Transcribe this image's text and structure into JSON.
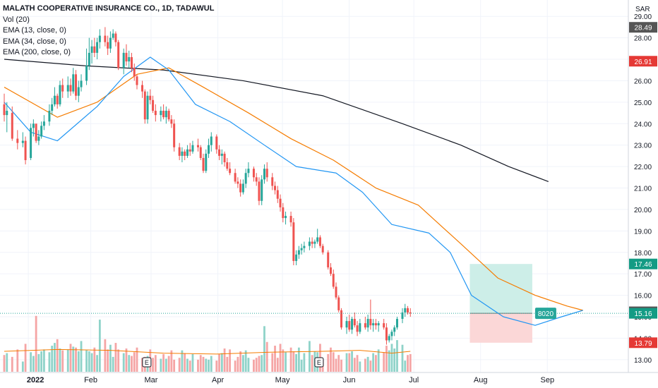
{
  "legend": {
    "symbol": "MALATH COOPERATIVE INSURANCE CO., 1D, TADAWUL",
    "items": [
      "Vol (20)",
      "EMA (13, close, 0)",
      "EMA (34, close, 0)",
      "EMA (200, close, 0)"
    ]
  },
  "chart_data": {
    "type": "candlestick",
    "currency_label": "SAR",
    "ylim": [
      12.6,
      29.5
    ],
    "y_ticks": [
      "13.00",
      "14.00",
      "15.00",
      "16.00",
      "17.00",
      "18.00",
      "19.00",
      "20.00",
      "21.00",
      "22.00",
      "23.00",
      "24.00",
      "25.00",
      "26.00",
      "27.00",
      "28.00",
      "29.00"
    ],
    "x_ticks": [
      "2022",
      "Feb",
      "Mar",
      "Apr",
      "May",
      "Jun",
      "Jul",
      "Aug",
      "Sep"
    ],
    "date_range": [
      "2022-01-01",
      "2022-09-15"
    ],
    "price_labels": [
      {
        "label": "28.49",
        "value": 28.49,
        "color": "#555555"
      },
      {
        "label": "26.91",
        "value": 26.91,
        "color": "#e53935"
      },
      {
        "label": "17.46",
        "value": 17.46,
        "color": "#139b84"
      },
      {
        "label": "15.23",
        "value": 15.23,
        "color": "#555555"
      },
      {
        "label": "15.16",
        "value": 15.16,
        "color": "#139b84"
      },
      {
        "label": "13.79",
        "value": 13.79,
        "color": "#e53935"
      }
    ],
    "position_tool": {
      "entry": 15.16,
      "target": 17.46,
      "stop": 13.79,
      "start_date": "2022-07-27",
      "end_date": "2022-08-25",
      "label": "8020"
    },
    "event_markers": [
      {
        "date": "2022-02-27",
        "label": "E"
      },
      {
        "date": "2022-05-18",
        "label": "E"
      }
    ],
    "last_close": 15.16,
    "colors": {
      "up": "#26a69a",
      "down": "#ef5350",
      "ema13": "#2196f3",
      "ema34": "#f57c00",
      "ema200": "#131722",
      "vol_up": "#8fd3c9",
      "vol_down": "#f5a5a5",
      "vol_ma": "#f57c00",
      "target_zone": "#cdeee8",
      "stop_zone": "#fbd7d7"
    },
    "ema13": [
      [
        0,
        25.0
      ],
      [
        10,
        23.6
      ],
      [
        20,
        23.2
      ],
      [
        35,
        24.8
      ],
      [
        45,
        26.2
      ],
      [
        55,
        27.1
      ],
      [
        62,
        26.5
      ],
      [
        72,
        24.9
      ],
      [
        85,
        24.1
      ],
      [
        98,
        23.0
      ],
      [
        110,
        22.0
      ],
      [
        125,
        21.7
      ],
      [
        135,
        20.8
      ],
      [
        146,
        19.3
      ],
      [
        160,
        18.9
      ],
      [
        168,
        18.0
      ],
      [
        176,
        16.0
      ],
      [
        188,
        15.0
      ],
      [
        200,
        14.6
      ],
      [
        210,
        15.0
      ],
      [
        218,
        15.3
      ]
    ],
    "ema34": [
      [
        0,
        25.7
      ],
      [
        20,
        24.3
      ],
      [
        35,
        25.0
      ],
      [
        50,
        26.3
      ],
      [
        62,
        26.6
      ],
      [
        75,
        25.7
      ],
      [
        92,
        24.5
      ],
      [
        108,
        23.3
      ],
      [
        124,
        22.3
      ],
      [
        140,
        21.0
      ],
      [
        156,
        20.2
      ],
      [
        172,
        18.4
      ],
      [
        186,
        16.8
      ],
      [
        200,
        16.0
      ],
      [
        212,
        15.5
      ],
      [
        218,
        15.3
      ]
    ],
    "ema200": [
      [
        0,
        27.0
      ],
      [
        30,
        26.7
      ],
      [
        60,
        26.5
      ],
      [
        90,
        26.0
      ],
      [
        120,
        25.3
      ],
      [
        150,
        24.0
      ],
      [
        172,
        23.0
      ],
      [
        190,
        22.0
      ],
      [
        205,
        21.3
      ]
    ],
    "candles": [
      [
        0,
        24.9,
        25.4,
        24.1,
        24.4
      ],
      [
        1,
        24.4,
        25.0,
        23.6,
        24.6
      ],
      [
        3,
        24.5,
        24.8,
        23.2,
        23.3
      ],
      [
        5,
        23.3,
        23.7,
        22.8,
        23.1
      ],
      [
        7,
        23.1,
        23.6,
        22.9,
        23.2
      ],
      [
        8,
        23.2,
        23.4,
        22.1,
        22.3
      ],
      [
        10,
        22.4,
        24.0,
        22.3,
        23.8
      ],
      [
        11,
        23.8,
        24.2,
        23.4,
        24.0
      ],
      [
        12,
        24.0,
        24.0,
        23.1,
        23.2
      ],
      [
        13,
        23.2,
        23.7,
        23.0,
        23.4
      ],
      [
        14,
        23.4,
        24.1,
        23.3,
        23.9
      ],
      [
        15,
        23.9,
        24.4,
        23.7,
        24.1
      ],
      [
        17,
        24.1,
        24.9,
        23.9,
        24.6
      ],
      [
        18,
        24.6,
        25.2,
        24.4,
        24.9
      ],
      [
        19,
        24.9,
        25.7,
        24.8,
        25.3
      ],
      [
        20,
        25.3,
        25.4,
        24.7,
        24.9
      ],
      [
        21,
        24.9,
        26.0,
        24.8,
        25.8
      ],
      [
        22,
        25.8,
        26.1,
        25.2,
        25.5
      ],
      [
        24,
        25.5,
        26.2,
        25.2,
        25.8
      ],
      [
        25,
        25.8,
        26.1,
        25.3,
        25.5
      ],
      [
        26,
        25.5,
        26.6,
        25.4,
        26.3
      ],
      [
        27,
        26.3,
        26.5,
        25.1,
        25.3
      ],
      [
        28,
        25.3,
        26.0,
        25.0,
        25.7
      ],
      [
        29,
        25.7,
        26.3,
        25.5,
        26.0
      ],
      [
        31,
        26.0,
        27.5,
        25.8,
        26.7
      ],
      [
        32,
        26.7,
        28.0,
        26.5,
        27.3
      ],
      [
        33,
        27.3,
        27.9,
        26.8,
        27.6
      ],
      [
        34,
        27.6,
        28.0,
        27.1,
        27.3
      ],
      [
        35,
        27.3,
        28.0,
        27.0,
        27.8
      ],
      [
        36,
        27.8,
        28.4,
        27.5,
        28.1
      ],
      [
        38,
        28.1,
        28.5,
        27.6,
        27.8
      ],
      [
        39,
        27.8,
        28.1,
        27.2,
        27.5
      ],
      [
        40,
        27.5,
        28.3,
        27.3,
        28.0
      ],
      [
        41,
        28.0,
        28.4,
        27.9,
        28.2
      ],
      [
        42,
        28.2,
        28.3,
        27.6,
        27.8
      ],
      [
        43,
        27.8,
        27.9,
        26.5,
        26.6
      ],
      [
        45,
        26.6,
        27.5,
        26.3,
        27.3
      ],
      [
        46,
        27.3,
        27.7,
        26.7,
        26.9
      ],
      [
        47,
        26.9,
        27.4,
        26.6,
        27.1
      ],
      [
        48,
        27.1,
        27.3,
        26.4,
        26.6
      ],
      [
        49,
        26.6,
        26.8,
        26.0,
        26.2
      ],
      [
        50,
        26.2,
        26.3,
        25.6,
        25.8
      ],
      [
        52,
        25.8,
        26.0,
        25.2,
        25.5
      ],
      [
        53,
        25.5,
        25.6,
        24.0,
        24.2
      ],
      [
        54,
        24.2,
        25.5,
        24.0,
        25.3
      ],
      [
        55,
        25.3,
        25.6,
        24.9,
        25.1
      ],
      [
        56,
        25.1,
        25.3,
        24.5,
        24.6
      ],
      [
        57,
        24.6,
        24.9,
        24.1,
        24.4
      ],
      [
        59,
        24.4,
        24.8,
        24.1,
        24.6
      ],
      [
        60,
        24.6,
        24.9,
        24.2,
        24.3
      ],
      [
        61,
        24.3,
        24.8,
        24.0,
        24.6
      ],
      [
        62,
        24.6,
        24.7,
        24.1,
        24.2
      ],
      [
        63,
        24.2,
        24.4,
        23.8,
        24.0
      ],
      [
        64,
        24.0,
        24.2,
        22.7,
        22.9
      ],
      [
        66,
        22.9,
        23.1,
        22.3,
        22.5
      ],
      [
        67,
        22.5,
        22.9,
        22.2,
        22.7
      ],
      [
        68,
        22.7,
        22.8,
        22.3,
        22.5
      ],
      [
        69,
        22.5,
        23.0,
        22.4,
        22.8
      ],
      [
        70,
        22.8,
        23.1,
        22.5,
        22.7
      ],
      [
        71,
        22.7,
        23.2,
        22.6,
        23.0
      ],
      [
        73,
        23.0,
        23.3,
        22.7,
        22.9
      ],
      [
        74,
        22.9,
        23.0,
        22.3,
        22.4
      ],
      [
        75,
        22.4,
        22.6,
        21.7,
        21.8
      ],
      [
        76,
        21.8,
        22.8,
        21.7,
        22.6
      ],
      [
        77,
        22.6,
        23.3,
        22.4,
        23.0
      ],
      [
        78,
        23.0,
        23.6,
        22.7,
        23.4
      ],
      [
        80,
        23.4,
        23.5,
        22.6,
        22.8
      ],
      [
        81,
        22.8,
        23.0,
        22.3,
        22.5
      ],
      [
        82,
        22.5,
        22.8,
        22.1,
        22.6
      ],
      [
        83,
        22.6,
        22.7,
        22.0,
        22.2
      ],
      [
        84,
        22.2,
        22.4,
        21.8,
        21.9
      ],
      [
        85,
        21.9,
        22.2,
        21.6,
        21.7
      ],
      [
        87,
        21.7,
        21.9,
        21.2,
        21.3
      ],
      [
        88,
        21.3,
        21.5,
        21.0,
        21.2
      ],
      [
        89,
        21.2,
        21.4,
        20.6,
        20.8
      ],
      [
        90,
        20.8,
        21.4,
        20.7,
        21.2
      ],
      [
        91,
        21.2,
        21.9,
        21.0,
        21.7
      ],
      [
        92,
        21.7,
        22.2,
        21.5,
        21.9
      ],
      [
        94,
        21.9,
        22.0,
        21.3,
        21.5
      ],
      [
        95,
        21.5,
        21.7,
        21.1,
        21.3
      ],
      [
        96,
        21.3,
        21.5,
        20.2,
        20.4
      ],
      [
        97,
        20.4,
        21.6,
        20.2,
        21.4
      ],
      [
        98,
        21.4,
        22.1,
        21.2,
        21.9
      ],
      [
        99,
        21.9,
        22.2,
        21.3,
        21.5
      ],
      [
        101,
        21.5,
        21.7,
        20.9,
        21.1
      ],
      [
        102,
        21.1,
        21.3,
        20.7,
        20.9
      ],
      [
        103,
        20.9,
        21.1,
        20.3,
        20.5
      ],
      [
        104,
        20.5,
        20.7,
        19.9,
        20.1
      ],
      [
        105,
        20.1,
        20.3,
        19.4,
        19.6
      ],
      [
        106,
        19.6,
        19.9,
        19.3,
        19.7
      ],
      [
        108,
        19.7,
        19.9,
        19.2,
        19.4
      ],
      [
        109,
        19.4,
        19.6,
        17.4,
        17.6
      ],
      [
        110,
        17.6,
        18.1,
        17.4,
        17.9
      ],
      [
        111,
        17.9,
        18.3,
        17.7,
        18.1
      ],
      [
        112,
        18.1,
        18.4,
        17.9,
        18.2
      ],
      [
        113,
        18.2,
        18.5,
        18.0,
        18.3
      ],
      [
        115,
        18.3,
        18.7,
        18.1,
        18.5
      ],
      [
        116,
        18.5,
        18.7,
        18.2,
        18.4
      ],
      [
        117,
        18.4,
        18.6,
        18.2,
        18.5
      ],
      [
        118,
        18.5,
        19.1,
        18.4,
        18.7
      ],
      [
        119,
        18.7,
        18.8,
        18.2,
        18.3
      ],
      [
        120,
        18.3,
        18.4,
        17.9,
        18.0
      ],
      [
        122,
        18.0,
        18.1,
        17.2,
        17.3
      ],
      [
        123,
        17.3,
        17.5,
        16.9,
        17.0
      ],
      [
        124,
        17.0,
        17.2,
        16.3,
        16.4
      ],
      [
        125,
        16.4,
        16.6,
        15.8,
        15.9
      ],
      [
        126,
        15.9,
        16.0,
        15.2,
        15.3
      ],
      [
        127,
        15.3,
        15.4,
        14.4,
        14.5
      ],
      [
        129,
        14.5,
        15.0,
        14.2,
        14.8
      ],
      [
        130,
        14.8,
        15.1,
        14.3,
        14.4
      ],
      [
        131,
        14.4,
        15.0,
        14.2,
        14.9
      ],
      [
        132,
        14.9,
        15.2,
        14.5,
        14.6
      ],
      [
        133,
        14.6,
        14.8,
        14.1,
        14.3
      ],
      [
        134,
        14.3,
        14.9,
        14.2,
        14.7
      ],
      [
        136,
        14.7,
        15.0,
        14.4,
        14.5
      ],
      [
        137,
        14.5,
        15.1,
        14.3,
        14.9
      ],
      [
        138,
        14.9,
        15.8,
        14.4,
        14.6
      ],
      [
        139,
        14.6,
        14.9,
        14.3,
        14.7
      ],
      [
        140,
        14.7,
        14.9,
        14.4,
        14.6
      ],
      [
        141,
        14.6,
        14.8,
        14.3,
        14.7
      ],
      [
        143,
        14.7,
        14.9,
        14.4,
        14.5
      ],
      [
        144,
        14.5,
        14.7,
        13.7,
        13.9
      ],
      [
        145,
        13.9,
        14.2,
        13.8,
        14.1
      ],
      [
        146,
        14.1,
        14.4,
        13.9,
        14.3
      ],
      [
        147,
        14.3,
        14.6,
        14.1,
        14.5
      ],
      [
        148,
        14.5,
        15.0,
        14.4,
        14.9
      ],
      [
        150,
        14.9,
        15.4,
        14.7,
        15.2
      ],
      [
        151,
        15.2,
        15.6,
        15.0,
        15.4
      ],
      [
        152,
        15.4,
        15.5,
        15.1,
        15.2
      ],
      [
        153,
        15.2,
        15.4,
        15.0,
        15.16
      ]
    ],
    "volume_scale": [
      0,
      100
    ],
    "volume": [
      18,
      20,
      16,
      24,
      11,
      30,
      21,
      17,
      60,
      19,
      22,
      24,
      21,
      28,
      31,
      35,
      25,
      23,
      24,
      30,
      27,
      26,
      22,
      33,
      23,
      22,
      20,
      26,
      18,
      56,
      35,
      24,
      29,
      16,
      31,
      24,
      20,
      25,
      18,
      17,
      21,
      26,
      15,
      16,
      17,
      24,
      15,
      18,
      14,
      19,
      14,
      17,
      23,
      13,
      15,
      23,
      20,
      14,
      12,
      19,
      13,
      18,
      16,
      14,
      13,
      17,
      12,
      19,
      20,
      25,
      16,
      24,
      12,
      16,
      22,
      18,
      23,
      15,
      13,
      15,
      17,
      18,
      49,
      32,
      20,
      28,
      15,
      30,
      24,
      21,
      26,
      22,
      19,
      26,
      13,
      20,
      33,
      18,
      22,
      21,
      30,
      13,
      19,
      26,
      21,
      14,
      18,
      13,
      20,
      20,
      22,
      15,
      18,
      11,
      14,
      16,
      12,
      20,
      18,
      24,
      21,
      28,
      23,
      30,
      25,
      34,
      29,
      12,
      18,
      19,
      14,
      24,
      18,
      16,
      12,
      22,
      31,
      16,
      13,
      18,
      20,
      22,
      24,
      20,
      27,
      17,
      29,
      24,
      22,
      17,
      20,
      28,
      35,
      24,
      13
    ],
    "volume_ma": [
      [
        0,
        22
      ],
      [
        20,
        24
      ],
      [
        40,
        23
      ],
      [
        60,
        20
      ],
      [
        80,
        19
      ],
      [
        100,
        21
      ],
      [
        120,
        22
      ],
      [
        134,
        23
      ],
      [
        146,
        20
      ],
      [
        153,
        22
      ]
    ]
  }
}
